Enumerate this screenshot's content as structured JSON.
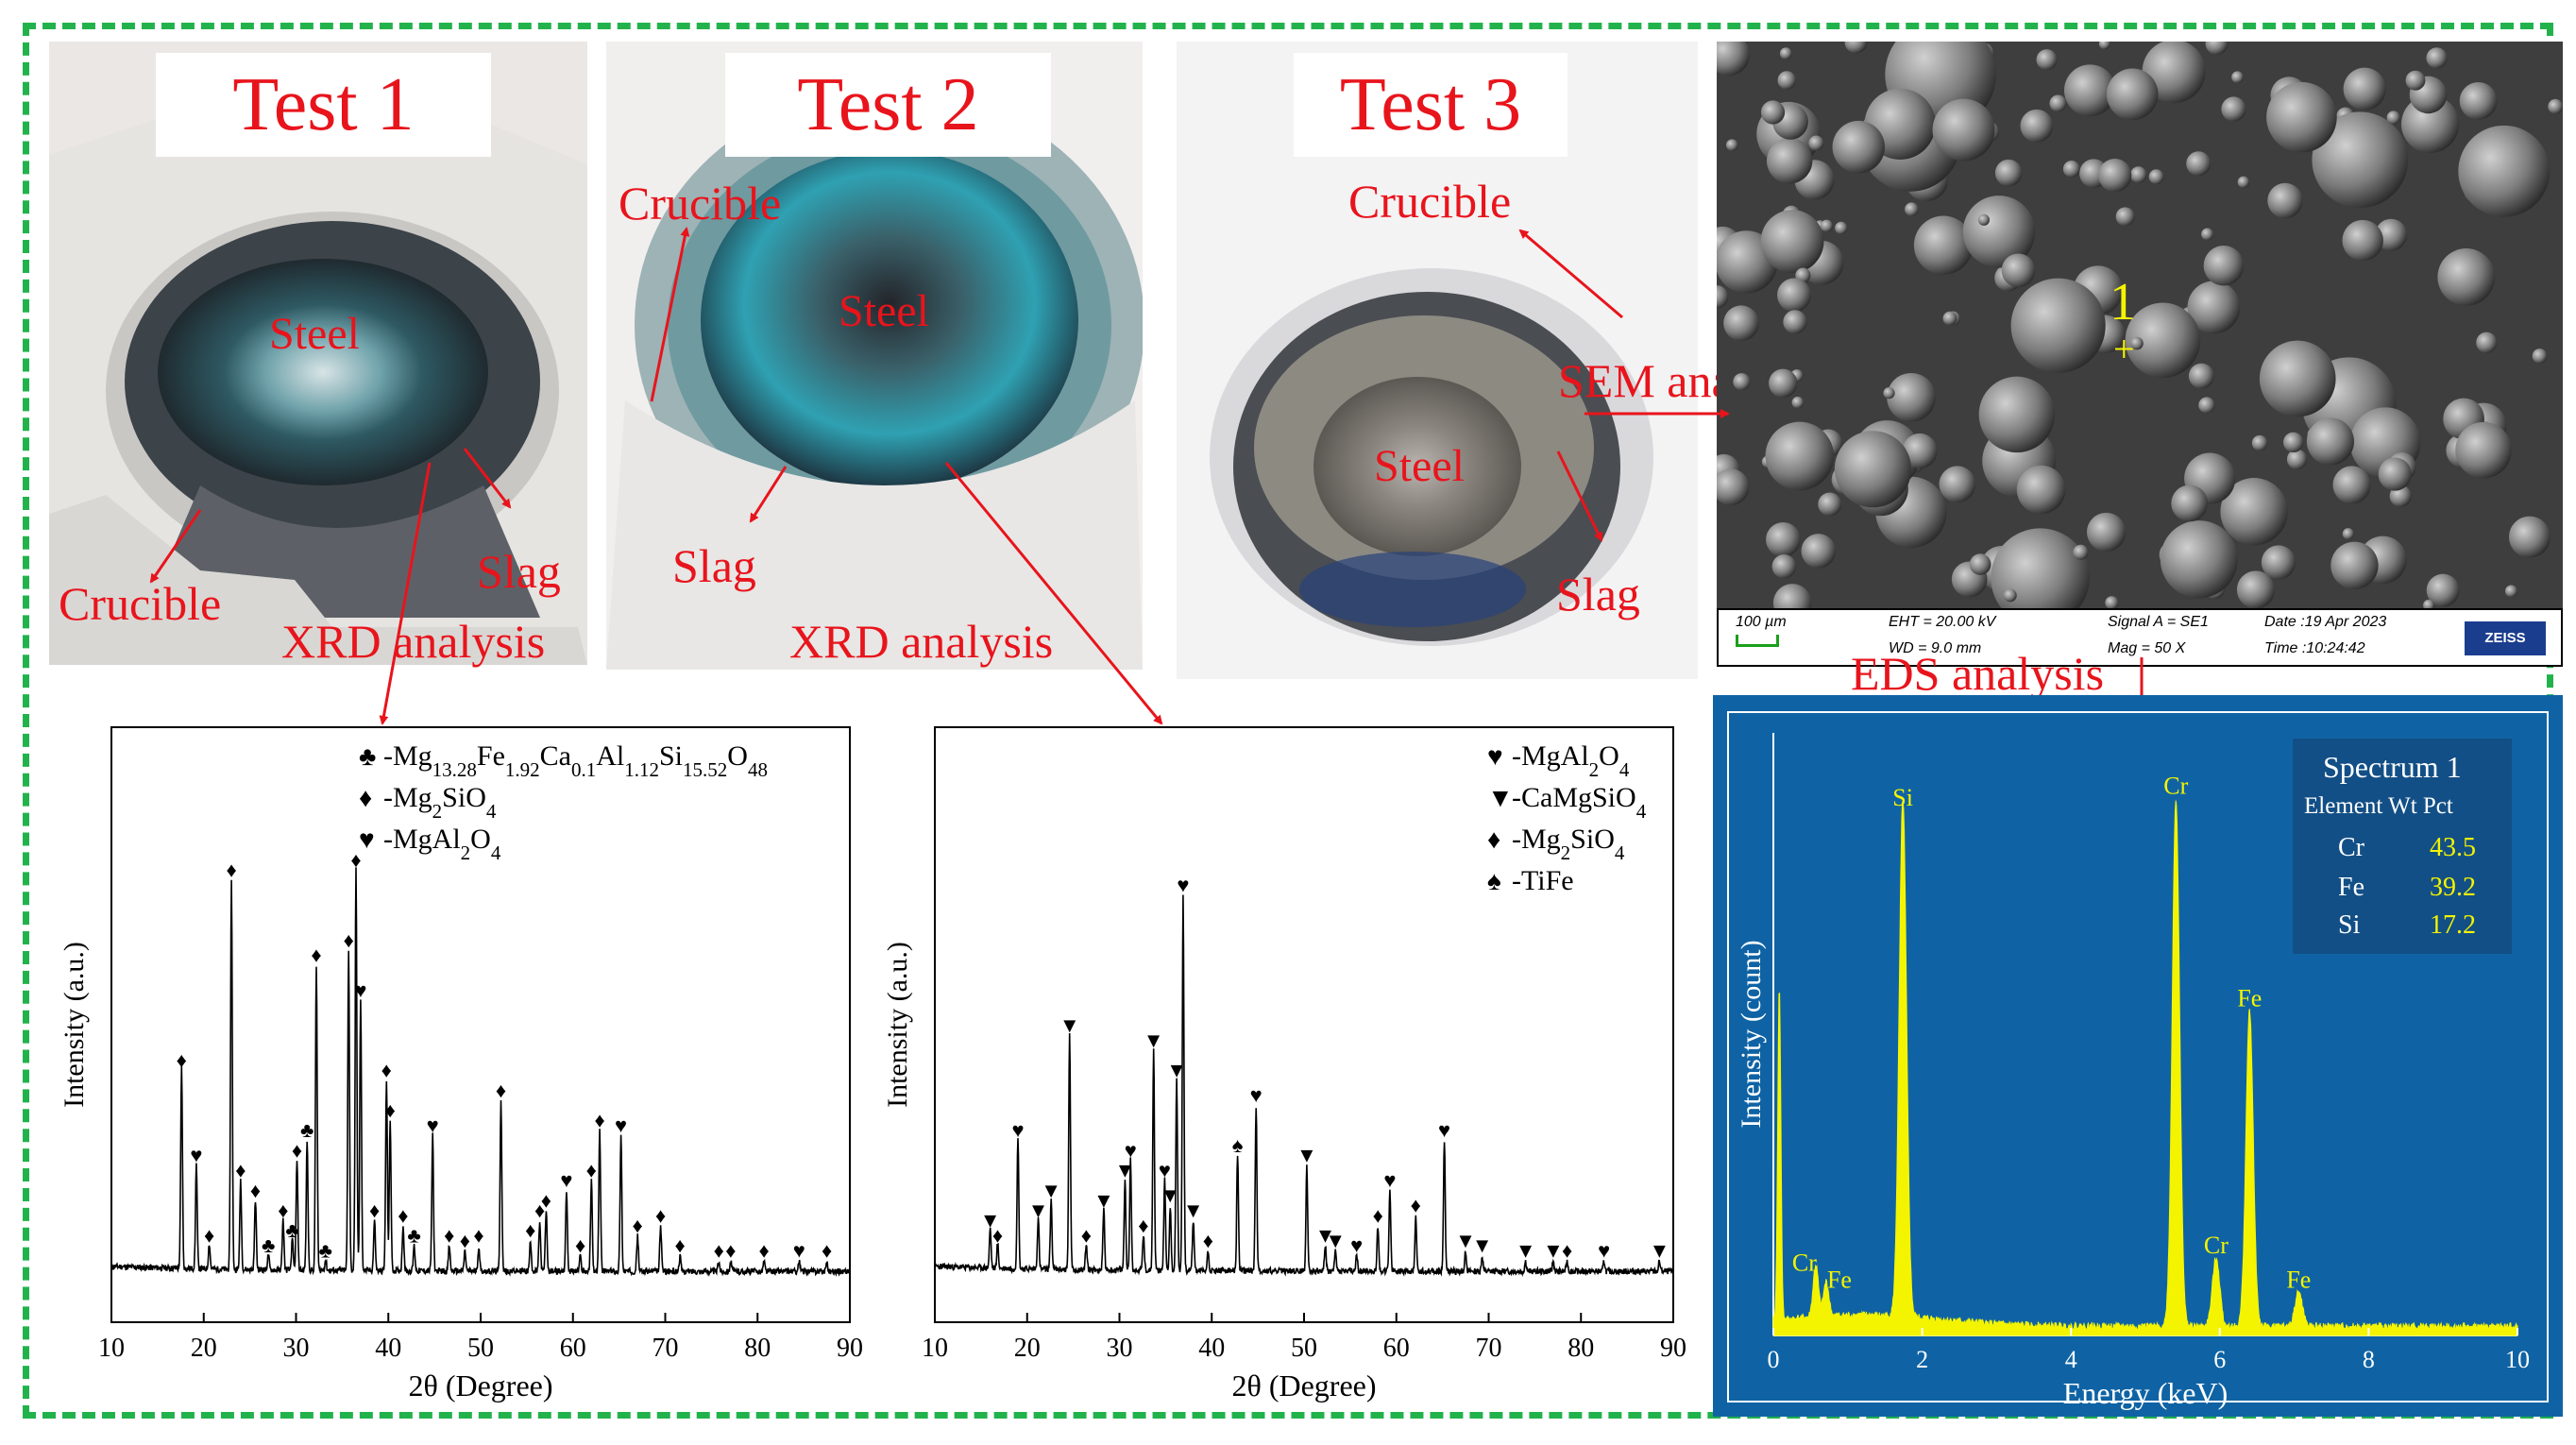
{
  "tests": [
    {
      "title": "Test 1",
      "steel": "Steel",
      "crucible": "Crucible",
      "slag": "Slag",
      "analysis": "XRD analysis"
    },
    {
      "title": "Test 2",
      "steel": "Steel",
      "crucible": "Crucible",
      "slag": "Slag",
      "analysis": "XRD analysis"
    },
    {
      "title": "Test 3",
      "steel": "Steel",
      "crucible": "Crucible",
      "slag": "Slag",
      "analysis": "SEM analysis"
    }
  ],
  "sem": {
    "point_label": "1",
    "scale": "100 µm",
    "eht": "EHT = 20.00 kV",
    "wd": "WD =  9.0 mm",
    "signal": "Signal A = SE1",
    "mag": "Mag =    50 X",
    "date": "Date :19 Apr 2023",
    "time": "Time :10:24:42",
    "brand": "ZEISS"
  },
  "eds_label": "EDS analysis",
  "chart_data": [
    {
      "type": "line",
      "name": "XRD Test 1",
      "xlabel": "2θ (Degree)",
      "ylabel": "Intensity (a.u.)",
      "xlim": [
        10,
        90
      ],
      "xticks": [
        10,
        20,
        30,
        40,
        50,
        60,
        70,
        80,
        90
      ],
      "legend": [
        {
          "symbol": "♣",
          "text": "-Mg13.28Fe1.92Ca0.1Al1.12Si15.52O48"
        },
        {
          "symbol": "♦",
          "text": "-Mg2SiO4"
        },
        {
          "symbol": "♥",
          "text": "-MgAl2O4"
        }
      ],
      "peaks": [
        {
          "x": 17.6,
          "y": 0.4,
          "sym": "♦"
        },
        {
          "x": 19.2,
          "y": 0.21,
          "sym": "♥"
        },
        {
          "x": 20.6,
          "y": 0.05,
          "sym": "♦"
        },
        {
          "x": 23.0,
          "y": 0.78,
          "sym": "♦"
        },
        {
          "x": 24.0,
          "y": 0.18,
          "sym": "♦"
        },
        {
          "x": 25.6,
          "y": 0.14,
          "sym": "♦"
        },
        {
          "x": 27.0,
          "y": 0.03,
          "sym": "♣"
        },
        {
          "x": 28.6,
          "y": 0.1,
          "sym": "♦"
        },
        {
          "x": 29.6,
          "y": 0.06,
          "sym": "♣"
        },
        {
          "x": 30.1,
          "y": 0.22,
          "sym": "♦"
        },
        {
          "x": 31.2,
          "y": 0.26,
          "sym": "♣"
        },
        {
          "x": 32.2,
          "y": 0.61,
          "sym": "♦"
        },
        {
          "x": 33.2,
          "y": 0.02,
          "sym": "♣"
        },
        {
          "x": 35.7,
          "y": 0.64,
          "sym": "♦"
        },
        {
          "x": 36.5,
          "y": 0.8,
          "sym": "♦"
        },
        {
          "x": 37.0,
          "y": 0.54,
          "sym": "♥"
        },
        {
          "x": 38.5,
          "y": 0.1,
          "sym": "♦"
        },
        {
          "x": 39.8,
          "y": 0.38,
          "sym": "♦"
        },
        {
          "x": 40.2,
          "y": 0.3,
          "sym": "♦"
        },
        {
          "x": 41.6,
          "y": 0.09,
          "sym": "♦"
        },
        {
          "x": 42.8,
          "y": 0.05,
          "sym": "♣"
        },
        {
          "x": 44.8,
          "y": 0.27,
          "sym": "♥"
        },
        {
          "x": 46.6,
          "y": 0.05,
          "sym": "♦"
        },
        {
          "x": 48.3,
          "y": 0.04,
          "sym": "♦"
        },
        {
          "x": 49.8,
          "y": 0.05,
          "sym": "♦"
        },
        {
          "x": 52.2,
          "y": 0.34,
          "sym": "♦"
        },
        {
          "x": 55.4,
          "y": 0.06,
          "sym": "♦"
        },
        {
          "x": 56.4,
          "y": 0.1,
          "sym": "♦"
        },
        {
          "x": 57.1,
          "y": 0.12,
          "sym": "♦"
        },
        {
          "x": 59.3,
          "y": 0.16,
          "sym": "♥"
        },
        {
          "x": 60.8,
          "y": 0.03,
          "sym": "♦"
        },
        {
          "x": 62.0,
          "y": 0.18,
          "sym": "♦"
        },
        {
          "x": 62.9,
          "y": 0.28,
          "sym": "♦"
        },
        {
          "x": 65.2,
          "y": 0.27,
          "sym": "♥"
        },
        {
          "x": 67.0,
          "y": 0.07,
          "sym": "♦"
        },
        {
          "x": 69.5,
          "y": 0.09,
          "sym": "♦"
        },
        {
          "x": 71.6,
          "y": 0.03,
          "sym": "♦"
        },
        {
          "x": 75.8,
          "y": 0.02,
          "sym": "♦"
        },
        {
          "x": 77.1,
          "y": 0.02,
          "sym": "♦"
        },
        {
          "x": 80.7,
          "y": 0.02,
          "sym": "♦"
        },
        {
          "x": 84.5,
          "y": 0.02,
          "sym": "♥"
        },
        {
          "x": 87.5,
          "y": 0.02,
          "sym": "♦"
        }
      ]
    },
    {
      "type": "line",
      "name": "XRD Test 2",
      "xlabel": "2θ (Degree)",
      "ylabel": "Intensity (a.u.)",
      "xlim": [
        10,
        90
      ],
      "xticks": [
        10,
        20,
        30,
        40,
        50,
        60,
        70,
        80,
        90
      ],
      "legend": [
        {
          "symbol": "♥",
          "text": "-MgAl2O4"
        },
        {
          "symbol": "▼",
          "text": "-CaMgSiO4"
        },
        {
          "symbol": "♦",
          "text": "-Mg2SiO4"
        },
        {
          "symbol": "♠",
          "text": "-TiFe"
        }
      ],
      "peaks": [
        {
          "x": 16.0,
          "y": 0.08,
          "sym": "▼"
        },
        {
          "x": 16.8,
          "y": 0.05,
          "sym": "♦"
        },
        {
          "x": 19.0,
          "y": 0.26,
          "sym": "♥"
        },
        {
          "x": 21.2,
          "y": 0.1,
          "sym": "▼"
        },
        {
          "x": 22.6,
          "y": 0.14,
          "sym": "▼"
        },
        {
          "x": 24.6,
          "y": 0.47,
          "sym": "▼"
        },
        {
          "x": 26.4,
          "y": 0.05,
          "sym": "♦"
        },
        {
          "x": 28.3,
          "y": 0.12,
          "sym": "▼"
        },
        {
          "x": 30.6,
          "y": 0.18,
          "sym": "▼"
        },
        {
          "x": 31.2,
          "y": 0.22,
          "sym": "♥"
        },
        {
          "x": 32.6,
          "y": 0.07,
          "sym": "♦"
        },
        {
          "x": 33.7,
          "y": 0.44,
          "sym": "▼"
        },
        {
          "x": 34.9,
          "y": 0.18,
          "sym": "♥"
        },
        {
          "x": 35.5,
          "y": 0.13,
          "sym": "▼"
        },
        {
          "x": 36.2,
          "y": 0.38,
          "sym": "▼"
        },
        {
          "x": 36.9,
          "y": 0.75,
          "sym": "♥"
        },
        {
          "x": 38.0,
          "y": 0.1,
          "sym": "▼"
        },
        {
          "x": 39.6,
          "y": 0.04,
          "sym": "♦"
        },
        {
          "x": 42.8,
          "y": 0.23,
          "sym": "♠"
        },
        {
          "x": 44.8,
          "y": 0.33,
          "sym": "♥"
        },
        {
          "x": 50.3,
          "y": 0.21,
          "sym": "▼"
        },
        {
          "x": 52.3,
          "y": 0.05,
          "sym": "▼"
        },
        {
          "x": 53.4,
          "y": 0.04,
          "sym": "▼"
        },
        {
          "x": 55.7,
          "y": 0.03,
          "sym": "♥"
        },
        {
          "x": 58.0,
          "y": 0.09,
          "sym": "♦"
        },
        {
          "x": 59.3,
          "y": 0.16,
          "sym": "♥"
        },
        {
          "x": 62.1,
          "y": 0.11,
          "sym": "♦"
        },
        {
          "x": 65.2,
          "y": 0.26,
          "sym": "♥"
        },
        {
          "x": 67.5,
          "y": 0.04,
          "sym": "▼"
        },
        {
          "x": 69.3,
          "y": 0.03,
          "sym": "▼"
        },
        {
          "x": 74.0,
          "y": 0.02,
          "sym": "▼"
        },
        {
          "x": 77.0,
          "y": 0.02,
          "sym": "▼"
        },
        {
          "x": 78.5,
          "y": 0.02,
          "sym": "♦"
        },
        {
          "x": 82.5,
          "y": 0.02,
          "sym": "♥"
        },
        {
          "x": 88.5,
          "y": 0.02,
          "sym": "▼"
        }
      ]
    },
    {
      "type": "line",
      "name": "EDS Spectrum 1",
      "xlabel": "Energy (keV)",
      "ylabel": "Intensity (count)",
      "xlim": [
        0,
        10
      ],
      "xticks": [
        0,
        2,
        4,
        6,
        8,
        10
      ],
      "peaks": [
        {
          "x": 0.08,
          "y": 0.58,
          "sym": ""
        },
        {
          "x": 0.57,
          "y": 0.09,
          "sym": "Cr"
        },
        {
          "x": 0.71,
          "y": 0.06,
          "sym": "Fe"
        },
        {
          "x": 1.74,
          "y": 0.9,
          "sym": "Si"
        },
        {
          "x": 5.41,
          "y": 0.92,
          "sym": "Cr"
        },
        {
          "x": 5.95,
          "y": 0.12,
          "sym": "Cr"
        },
        {
          "x": 6.4,
          "y": 0.55,
          "sym": "Fe"
        },
        {
          "x": 7.06,
          "y": 0.06,
          "sym": "Fe"
        }
      ],
      "table": {
        "title": "Spectrum 1",
        "header": "Element Wt Pct",
        "rows": [
          {
            "element": "Cr",
            "value": "43.5"
          },
          {
            "element": "Fe",
            "value": "39.2"
          },
          {
            "element": "Si",
            "value": "17.2"
          }
        ]
      }
    }
  ]
}
